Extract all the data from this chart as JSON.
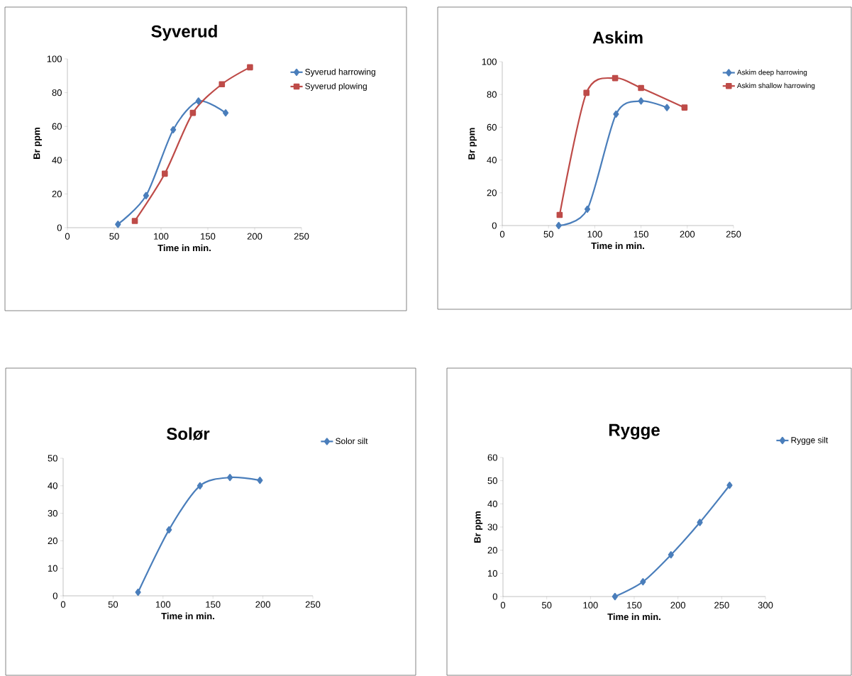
{
  "chart_data": [
    {
      "type": "line",
      "title": "Syverud",
      "xlabel": "Time in min.",
      "ylabel": "Br ppm",
      "xlim": [
        0,
        250
      ],
      "ylim": [
        0,
        100
      ],
      "xticks": [
        0,
        50,
        100,
        150,
        200,
        250
      ],
      "yticks": [
        0,
        20,
        40,
        60,
        80,
        100
      ],
      "legend": "top right",
      "line_style": "solid",
      "series": [
        {
          "name": "Syverud harrowing",
          "color": "#4a7ebb",
          "marker": "diamond",
          "x": [
            54,
            84,
            113,
            140,
            169
          ],
          "values": [
            2,
            19,
            58,
            75,
            68
          ]
        },
        {
          "name": "Syverud plowing",
          "color": "#be4b48",
          "marker": "square",
          "x": [
            72,
            104,
            134,
            165,
            195
          ],
          "values": [
            4,
            32,
            68,
            85,
            95
          ]
        }
      ]
    },
    {
      "type": "line",
      "title": "Askim",
      "xlabel": "Time in min.",
      "ylabel": "Br ppm",
      "xlim": [
        0,
        250
      ],
      "ylim": [
        0,
        100
      ],
      "xticks": [
        0,
        50,
        100,
        150,
        200,
        250
      ],
      "yticks": [
        0,
        20,
        40,
        60,
        80,
        100
      ],
      "legend": "top right",
      "line_style": "solid",
      "series": [
        {
          "name": "Askim deep harrowing",
          "color": "#4a7ebb",
          "marker": "diamond",
          "x": [
            61,
            92,
            123,
            150,
            178
          ],
          "values": [
            0,
            10,
            68,
            76,
            72
          ]
        },
        {
          "name": "Askim shallow harrowing",
          "color": "#be4b48",
          "marker": "square",
          "x": [
            62,
            91,
            122,
            150,
            197
          ],
          "values": [
            6.5,
            81,
            90,
            84,
            72
          ]
        }
      ]
    },
    {
      "type": "line",
      "title": "Solør",
      "xlabel": "Time in min.",
      "xlim": [
        0,
        250
      ],
      "ylim": [
        0,
        50
      ],
      "xticks": [
        0,
        50,
        100,
        150,
        200,
        250
      ],
      "yticks": [
        0,
        10,
        20,
        30,
        40,
        50
      ],
      "legend": "top right",
      "line_style": "solid",
      "series": [
        {
          "name": "Solor silt",
          "color": "#4a7ebb",
          "marker": "diamond",
          "x": [
            75,
            106,
            137,
            167,
            197
          ],
          "values": [
            1.3,
            24,
            40,
            43,
            42
          ]
        }
      ]
    },
    {
      "type": "line",
      "title": "Rygge",
      "xlabel": "Time in min.",
      "ylabel": "Br ppm",
      "xlim": [
        0,
        300
      ],
      "ylim": [
        0,
        60
      ],
      "xticks": [
        0,
        50,
        100,
        150,
        200,
        250,
        300
      ],
      "yticks": [
        0,
        10,
        20,
        30,
        40,
        50,
        60
      ],
      "legend": "top right",
      "line_style": "solid",
      "series": [
        {
          "name": "Rygge silt",
          "color": "#4a7ebb",
          "marker": "diamond",
          "x": [
            128,
            160,
            192,
            225,
            259
          ],
          "values": [
            0,
            6.4,
            18,
            32,
            48
          ]
        }
      ]
    }
  ]
}
